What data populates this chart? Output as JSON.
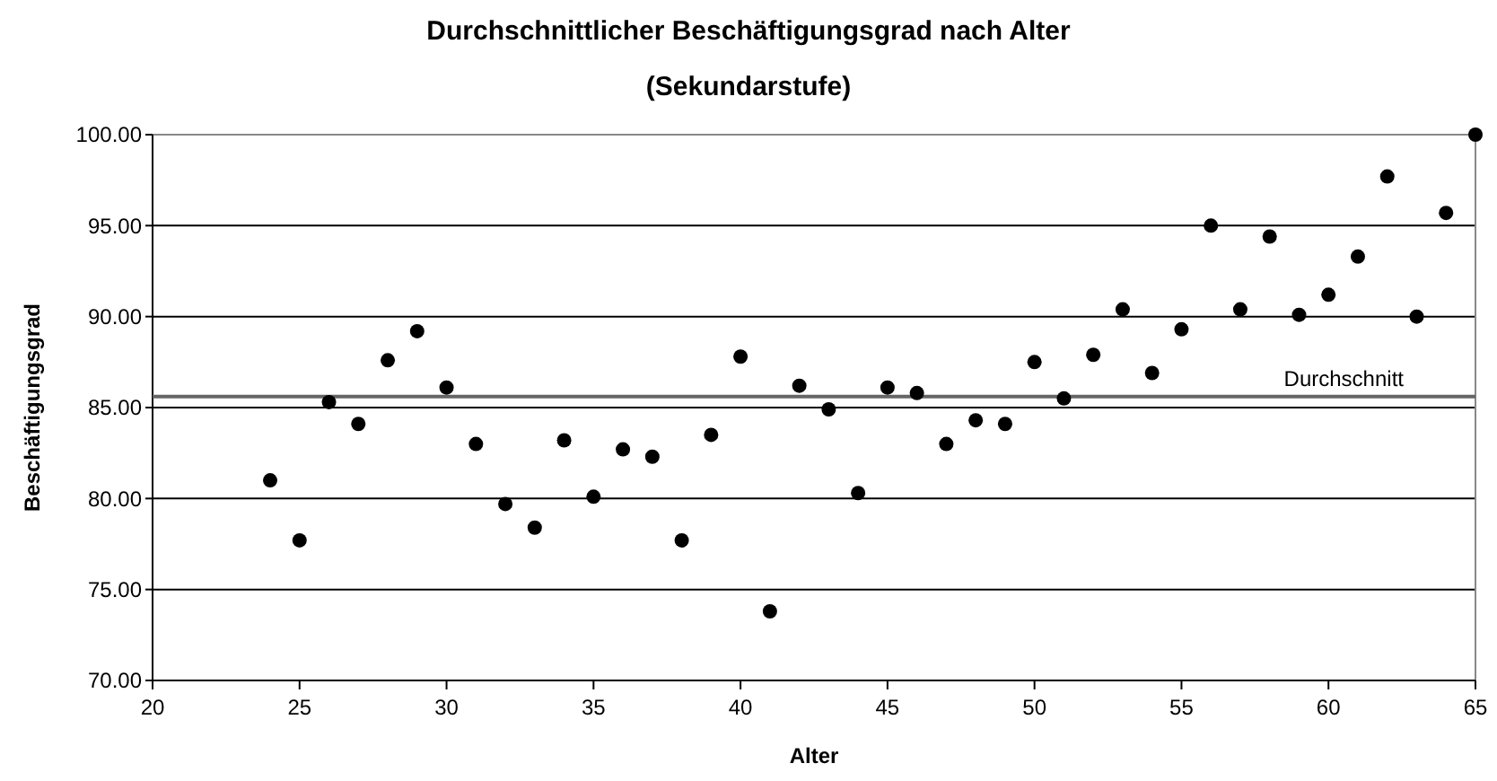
{
  "chart_data": {
    "type": "scatter",
    "title": "Durchschnittlicher Beschäftigungsgrad nach Alter",
    "subtitle": "(Sekundarstufe)",
    "xlabel": "Alter",
    "ylabel": "Beschäftigungsgrad",
    "x": [
      24,
      25,
      26,
      27,
      28,
      29,
      30,
      31,
      32,
      33,
      34,
      35,
      36,
      37,
      38,
      39,
      40,
      41,
      42,
      43,
      44,
      45,
      46,
      47,
      48,
      49,
      50,
      51,
      52,
      53,
      54,
      55,
      56,
      57,
      58,
      59,
      60,
      61,
      62,
      63,
      64,
      65
    ],
    "series": [
      {
        "color": "#000000",
        "values": [
          81.0,
          77.7,
          85.3,
          84.1,
          87.6,
          89.2,
          86.1,
          83.0,
          79.7,
          78.4,
          83.2,
          80.1,
          82.7,
          82.3,
          77.7,
          83.5,
          87.8,
          73.8,
          86.2,
          84.9,
          80.3,
          86.1,
          85.8,
          83.0,
          84.3,
          84.1,
          87.5,
          85.5,
          87.9,
          90.4,
          86.9,
          89.3,
          95.0,
          90.4,
          94.4,
          90.1,
          91.2,
          93.3,
          97.7,
          90.0,
          95.7,
          100.0
        ]
      }
    ],
    "xlim": [
      20,
      65
    ],
    "xticks": [
      20,
      25,
      30,
      35,
      40,
      45,
      50,
      55,
      60,
      65
    ],
    "ylim": [
      70,
      100
    ],
    "yticks": [
      {
        "value": 70,
        "label": "70.00"
      },
      {
        "value": 75,
        "label": "75.00"
      },
      {
        "value": 80,
        "label": "80.00"
      },
      {
        "value": 85,
        "label": "85.00"
      },
      {
        "value": 90,
        "label": "90.00"
      },
      {
        "value": 95,
        "label": "95.00"
      },
      {
        "value": 100,
        "label": "100.00"
      }
    ],
    "grid": "y",
    "marker": "circle",
    "ref_lines": [
      {
        "axis": "y",
        "value": 85.6,
        "label": "Durchschnitt",
        "color": "#666666"
      }
    ]
  }
}
